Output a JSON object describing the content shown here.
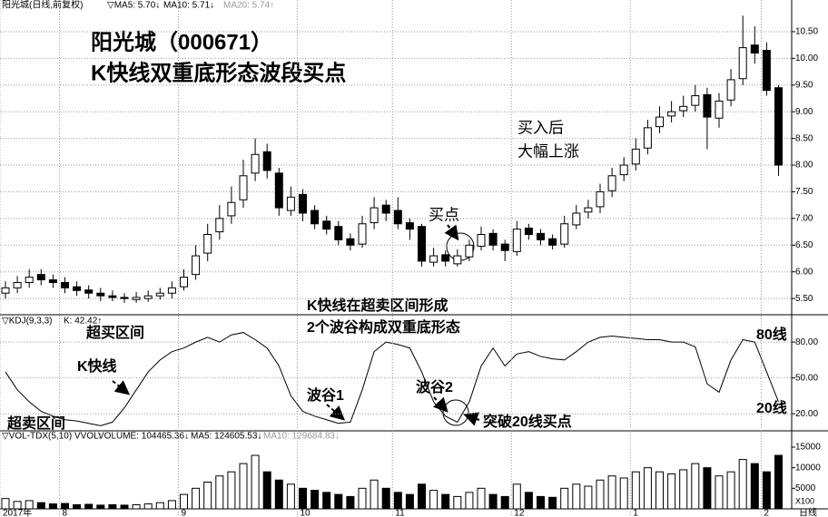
{
  "header": {
    "stock": "阳光城(日线,前复权)",
    "ma5": "▽MA5: 5.70↓",
    "ma10": "MA10: 5.71↓",
    "ma20": "MA20: 5.74↑",
    "kdj": "▽KDJ(9,3,3)",
    "kdj_k": "K: 42.42↑",
    "vol": "▽VOL-TDX(5,10)",
    "vvol": "VVOL:",
    "volume": "VOLUME: 104465.36↓",
    "vol_ma5": "MA5: 124605.53↓",
    "vol_ma10": "MA10: 129684.83↓",
    "unit": "X100",
    "period": "日线"
  },
  "annotations": [
    "阳光城（000671）",
    "K快线双重底形态波段买点",
    "买入后",
    "大幅上涨",
    "买点",
    "K快线在超卖区间形成",
    "2个波谷构成双重底形态",
    "超买区间",
    "K快线",
    "波谷1",
    "波谷2",
    "突破20线买点",
    "80线",
    "20线",
    "超卖区间"
  ],
  "chart_data": [
    {
      "type": "candlestick",
      "open": [
        5.6,
        5.7,
        5.8,
        5.95,
        5.85,
        5.8,
        5.72,
        5.66,
        5.6,
        5.55,
        5.52,
        5.48,
        5.5,
        5.55,
        5.6,
        5.72,
        5.95,
        6.35,
        6.75,
        7.05,
        7.35,
        7.85,
        8.25,
        7.85,
        7.15,
        7.45,
        7.15,
        6.95,
        6.85,
        6.62,
        6.52,
        6.92,
        7.25,
        7.15,
        6.92,
        6.85,
        6.18,
        6.32,
        6.15,
        6.28,
        6.48,
        6.72,
        6.52,
        6.38,
        6.82,
        6.72,
        6.62,
        6.52,
        6.88,
        7.12,
        7.22,
        7.52,
        7.82,
        8.02,
        8.32,
        8.72,
        8.92,
        9.02,
        9.12,
        9.32,
        8.88,
        9.22,
        9.62,
        10.25,
        10.15,
        9.45
      ],
      "high": [
        5.82,
        5.92,
        6.05,
        6.05,
        5.95,
        5.9,
        5.82,
        5.75,
        5.7,
        5.65,
        5.6,
        5.62,
        5.65,
        5.7,
        5.82,
        6.05,
        6.5,
        6.9,
        7.25,
        7.6,
        8.1,
        8.5,
        8.4,
        7.95,
        7.6,
        7.55,
        7.25,
        7.05,
        6.95,
        6.72,
        7.05,
        7.4,
        7.35,
        7.4,
        7.0,
        6.9,
        6.45,
        6.4,
        6.42,
        6.6,
        6.85,
        6.8,
        6.6,
        6.95,
        6.9,
        6.8,
        6.7,
        7.05,
        7.25,
        7.35,
        7.65,
        7.95,
        8.15,
        8.5,
        8.85,
        9.1,
        9.2,
        9.3,
        9.5,
        9.45,
        9.35,
        9.8,
        10.8,
        10.6,
        10.3,
        9.5
      ],
      "low": [
        5.5,
        5.6,
        5.7,
        5.75,
        5.7,
        5.6,
        5.55,
        5.5,
        5.45,
        5.45,
        5.42,
        5.42,
        5.44,
        5.48,
        5.5,
        5.65,
        5.85,
        6.2,
        6.6,
        6.9,
        7.2,
        7.7,
        7.75,
        7.05,
        7.05,
        6.95,
        6.8,
        6.7,
        6.5,
        6.4,
        6.45,
        6.8,
        6.95,
        6.8,
        6.6,
        6.1,
        6.1,
        6.1,
        6.1,
        6.2,
        6.4,
        6.4,
        6.2,
        6.3,
        6.6,
        6.5,
        6.42,
        6.45,
        6.8,
        7.0,
        7.1,
        7.4,
        7.7,
        7.9,
        8.2,
        8.6,
        8.8,
        8.9,
        9.0,
        8.3,
        8.7,
        9.1,
        9.5,
        9.9,
        9.3,
        7.8
      ],
      "close": [
        5.7,
        5.8,
        5.9,
        5.85,
        5.8,
        5.7,
        5.65,
        5.6,
        5.55,
        5.52,
        5.5,
        5.52,
        5.55,
        5.6,
        5.7,
        5.9,
        6.3,
        6.7,
        7.0,
        7.3,
        7.8,
        8.2,
        7.9,
        7.2,
        7.4,
        7.1,
        6.9,
        6.8,
        6.6,
        6.5,
        6.9,
        7.2,
        7.1,
        6.9,
        6.8,
        6.2,
        6.3,
        6.2,
        6.3,
        6.5,
        6.7,
        6.5,
        6.4,
        6.8,
        6.7,
        6.6,
        6.5,
        6.9,
        7.1,
        7.2,
        7.5,
        7.8,
        8.0,
        8.3,
        8.7,
        8.9,
        9.0,
        9.1,
        9.3,
        8.9,
        9.2,
        9.6,
        10.2,
        10.1,
        9.4,
        8.0
      ],
      "ylim": [
        5.23,
        10.89
      ],
      "yticks": [
        {
          "value": 5.5,
          "label": "5.50"
        },
        {
          "value": 6,
          "label": "6.00"
        },
        {
          "value": 6.5,
          "label": "6.50"
        },
        {
          "value": 7,
          "label": "7.00"
        },
        {
          "value": 7.5,
          "label": "7.50"
        },
        {
          "value": 8,
          "label": "8.00"
        },
        {
          "value": 8.5,
          "label": "8.50"
        },
        {
          "value": 9,
          "label": "9.00"
        },
        {
          "value": 9.5,
          "label": "9.50"
        },
        {
          "value": 10,
          "label": "10.00"
        },
        {
          "value": 10.5,
          "label": "10.50"
        }
      ],
      "grid": true,
      "up_color": "#ffffff",
      "down_color": "#000000"
    },
    {
      "type": "line",
      "values": [
        55,
        40,
        30,
        22,
        18,
        15,
        14,
        12,
        10,
        13,
        25,
        40,
        55,
        65,
        72,
        75,
        80,
        84,
        80,
        86,
        88,
        82,
        75,
        60,
        35,
        22,
        18,
        15,
        12,
        13,
        40,
        72,
        80,
        78,
        75,
        55,
        30,
        18,
        13,
        30,
        60,
        75,
        60,
        70,
        72,
        68,
        66,
        65,
        72,
        80,
        84,
        85,
        84,
        83,
        82,
        82,
        80,
        80,
        76,
        45,
        38,
        65,
        82,
        80,
        55,
        30
      ],
      "color": "#000000",
      "ylim": [
        8,
        93
      ],
      "yticks": [
        {
          "value": 20,
          "label": "20.00"
        },
        {
          "value": 50,
          "label": "50.00"
        },
        {
          "value": 80,
          "label": "80.00"
        }
      ],
      "grid": true
    },
    {
      "type": "bar",
      "categories": [
        "2017年",
        null,
        null,
        null,
        null,
        "8",
        null,
        null,
        null,
        null,
        null,
        null,
        null,
        null,
        null,
        "9",
        null,
        null,
        null,
        null,
        null,
        null,
        null,
        null,
        null,
        "10",
        null,
        null,
        null,
        null,
        null,
        null,
        null,
        "11",
        null,
        null,
        null,
        null,
        null,
        null,
        null,
        null,
        null,
        "12",
        null,
        null,
        null,
        null,
        null,
        null,
        null,
        null,
        null,
        "1",
        null,
        null,
        null,
        null,
        null,
        null,
        null,
        null,
        null,
        null,
        "2",
        null
      ],
      "values": [
        2500,
        1800,
        2000,
        1500,
        1200,
        1300,
        1000,
        1100,
        900,
        1000,
        900,
        1000,
        1200,
        1500,
        2000,
        3500,
        5000,
        6500,
        8000,
        9000,
        11000,
        13000,
        9000,
        7000,
        6000,
        5000,
        4500,
        4000,
        3500,
        3000,
        5000,
        7000,
        5000,
        4000,
        3500,
        6000,
        4500,
        3500,
        3000,
        4000,
        5000,
        3500,
        3000,
        6000,
        4000,
        3000,
        2800,
        5000,
        6000,
        5500,
        7000,
        8000,
        7500,
        9000,
        10000,
        9000,
        8500,
        9500,
        11000,
        10000,
        8000,
        9000,
        12000,
        11000,
        9000,
        13000
      ],
      "ylim": [
        0,
        16100
      ],
      "yticks": [
        5000,
        10000,
        15000
      ],
      "grid": false
    }
  ]
}
